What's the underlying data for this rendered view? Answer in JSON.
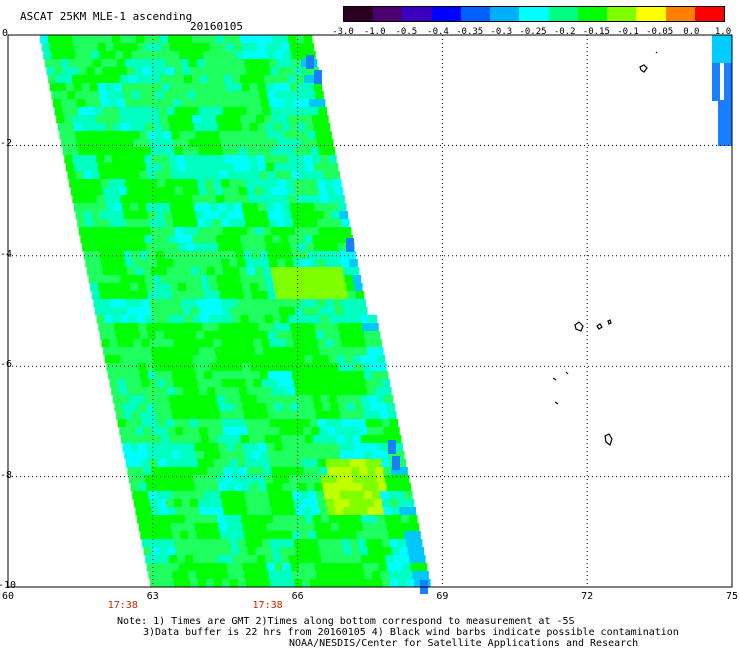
{
  "header": {
    "title": "ASCAT 25KM MLE-1 ascending",
    "date": "20160105"
  },
  "colorbar": {
    "labels": [
      "-3.0",
      "-1.0",
      "-0.5",
      "-0.4",
      "-0.35",
      "-0.3",
      "-0.25",
      "-0.2",
      "-0.15",
      "-0.1",
      "-0.05",
      "0.0",
      "1.0"
    ],
    "colors": [
      "#2a0020",
      "#4a0070",
      "#3a00c0",
      "#0000ff",
      "#0060ff",
      "#00b0ff",
      "#00ffff",
      "#00ff80",
      "#00ff00",
      "#80ff00",
      "#ffff00",
      "#ff8000",
      "#ff0000"
    ]
  },
  "map": {
    "lon_range": [
      60,
      75
    ],
    "lat_range": [
      0,
      -10
    ],
    "x_ticks": [
      "60",
      "63",
      "66",
      "69",
      "72",
      "75"
    ],
    "y_ticks": [
      "0",
      "-2",
      "-4",
      "-6",
      "-8",
      "-10"
    ],
    "gridlines": "dotted",
    "swath_color_dominant": "#00ff00",
    "swath_color_secondary": "#00ffff",
    "times": [
      {
        "label": "17:38",
        "lon": 63
      },
      {
        "label": "17:38",
        "lon": 66
      }
    ]
  },
  "notes": {
    "line1": "Note: 1) Times are GMT 2)Times along bottom correspond to measurement at -5S",
    "line2": "3)Data buffer is 22 hrs from 20160105 4) Black wind barbs indicate possible contamination",
    "line3": "NOAA/NESDIS/Center for Satellite Applications and Research"
  }
}
